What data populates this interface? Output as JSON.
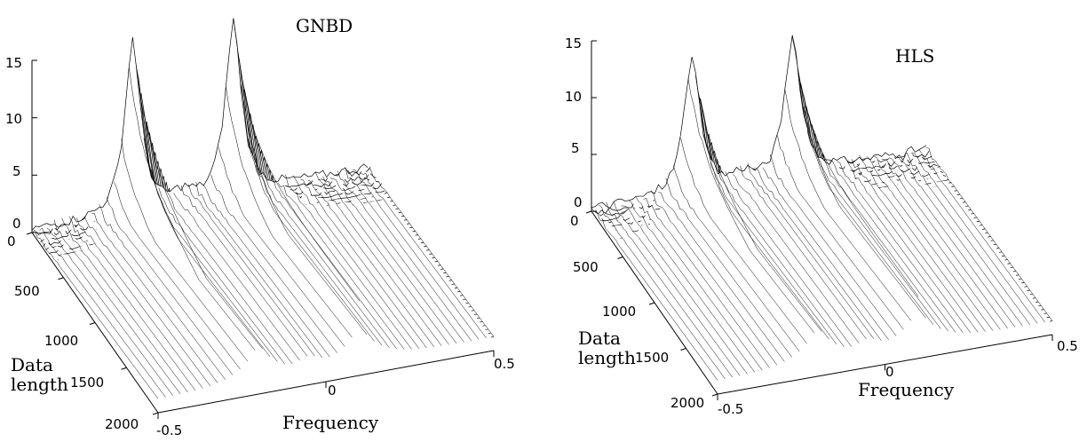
{
  "chart_data": [
    {
      "type": "surface",
      "title": "GNBD",
      "xlabel": "Frequency",
      "ylabel": "Data length",
      "zlabel": "",
      "xlim": [
        -0.5,
        0.5
      ],
      "ylim": [
        0,
        2000
      ],
      "zlim": [
        0,
        15
      ],
      "x_ticks": [
        "-0.5",
        "0",
        "0.5"
      ],
      "y_ticks": [
        "0",
        "500",
        "1000",
        "1500",
        "2000"
      ],
      "z_ticks": [
        "0",
        "5",
        "10",
        "15"
      ],
      "peaks": [
        {
          "frequency": -0.2,
          "max_value": 15
        },
        {
          "frequency": 0.1,
          "max_value": 15
        }
      ],
      "shoulder_values": {
        "low_data_length": 2.5,
        "high_data_length": 4
      }
    },
    {
      "type": "surface",
      "title": "HLS",
      "xlabel": "Frequency",
      "ylabel": "Data length",
      "zlabel": "",
      "xlim": [
        -0.5,
        0.5
      ],
      "ylim": [
        0,
        2000
      ],
      "zlim": [
        0,
        15
      ],
      "x_ticks": [
        "-0.5",
        "0",
        "0.5"
      ],
      "y_ticks": [
        "0",
        "500",
        "1000",
        "1500",
        "2000"
      ],
      "z_ticks": [
        "0",
        "5",
        "10",
        "15"
      ],
      "peaks": [
        {
          "frequency": -0.2,
          "max_value": 12
        },
        {
          "frequency": 0.1,
          "max_value": 12
        }
      ],
      "shoulder_values": {
        "low_data_length": 2.5,
        "high_data_length": 4
      }
    }
  ]
}
